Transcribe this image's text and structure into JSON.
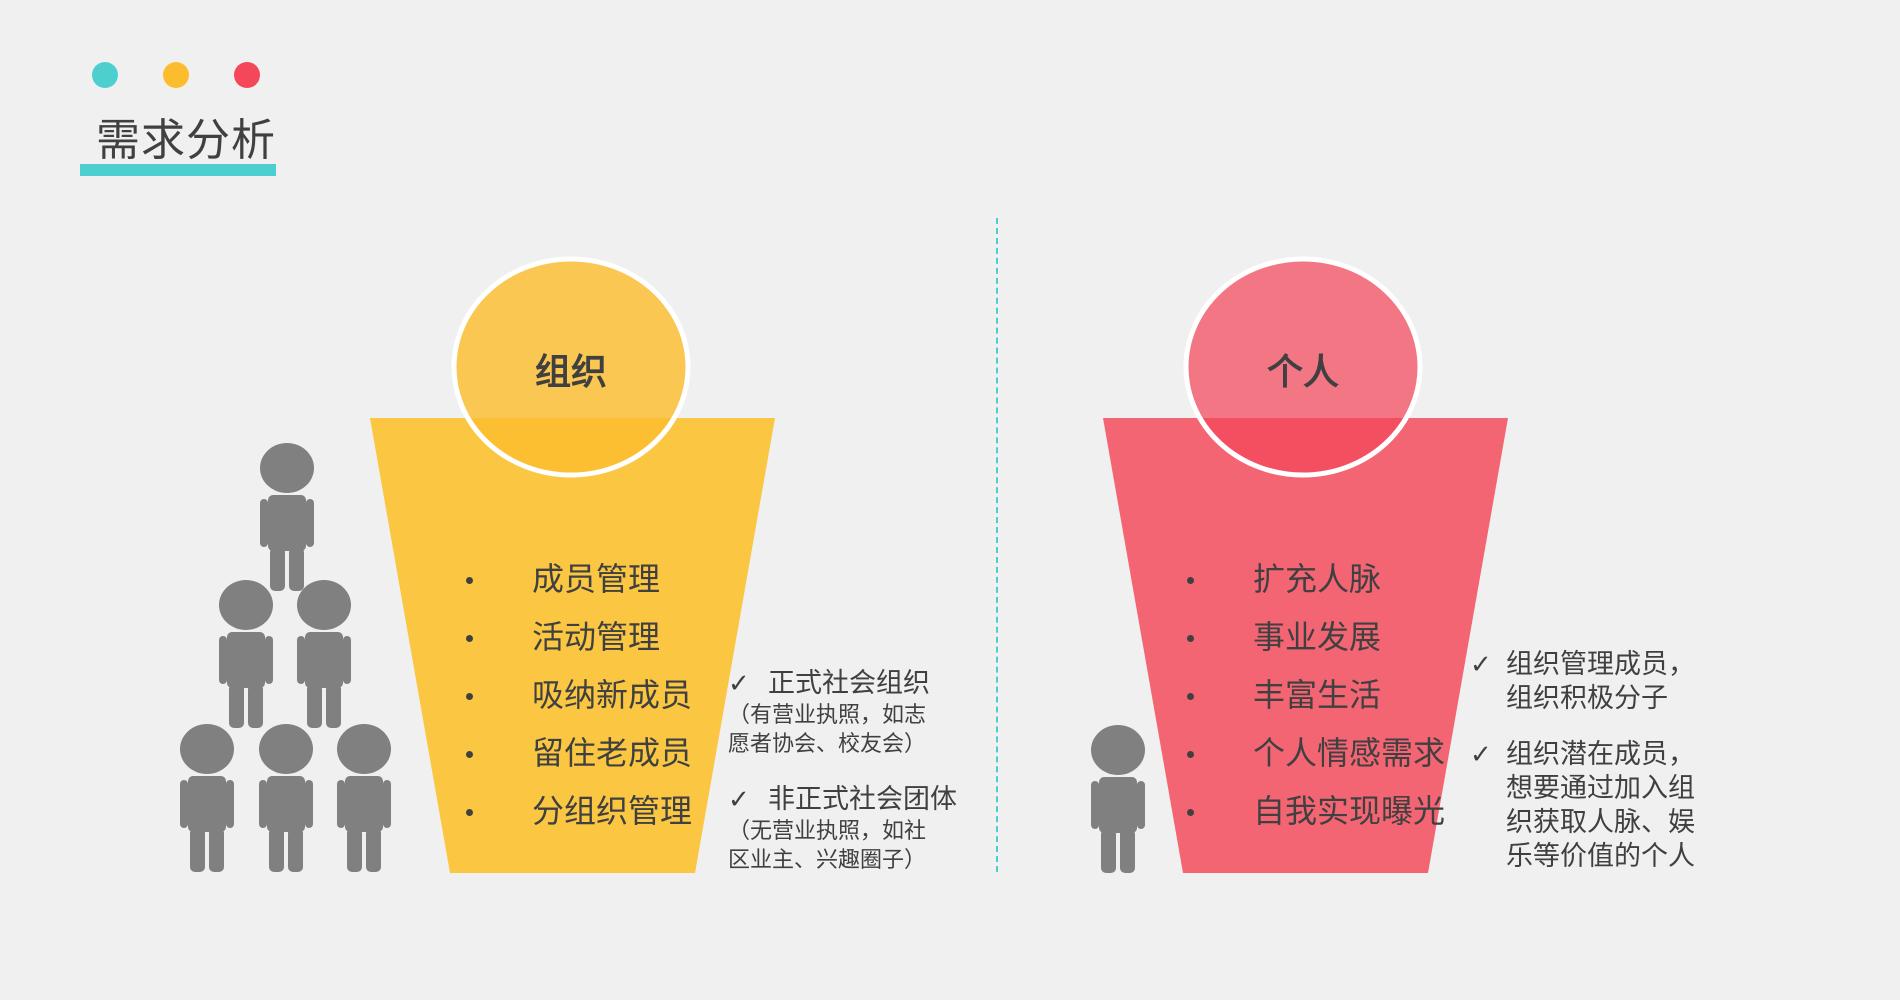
{
  "header": {
    "title": "需求分析",
    "dot_colors": [
      "#4ecfcf",
      "#fbbd2e",
      "#f4475a"
    ],
    "underline_color": "#4ecfcf"
  },
  "divider_color": "#4ecfcf",
  "organization": {
    "label": "组织",
    "funnel_color": "#fbc743",
    "circle_color": "#fbbd2e",
    "items": [
      "成员管理",
      "活动管理",
      "吸纳新成员",
      "留住老成员",
      "分组织管理"
    ],
    "notes": [
      {
        "mark": "✓",
        "title": "正式社会组织",
        "sub": [
          "（有营业执照，如志",
          "愿者协会、校友会）"
        ]
      },
      {
        "mark": "✓",
        "title": "非正式社会团体",
        "sub": [
          "（无营业执照，如社",
          "区业主、兴趣圈子）"
        ]
      }
    ]
  },
  "individual": {
    "label": "个人",
    "funnel_color": "#f46574",
    "circle_color": "#f4475a",
    "items": [
      "扩充人脉",
      "事业发展",
      "丰富生活",
      "个人情感需求",
      "自我实现曝光"
    ],
    "notes": [
      {
        "mark": "✓",
        "lines": [
          "组织管理成员，",
          "组织积极分子"
        ]
      },
      {
        "mark": "✓",
        "lines": [
          "组织潜在成员，",
          "想要通过加入组",
          "织获取人脉、娱",
          "乐等价值的个人"
        ]
      }
    ]
  },
  "people_icon_color": "#808080"
}
